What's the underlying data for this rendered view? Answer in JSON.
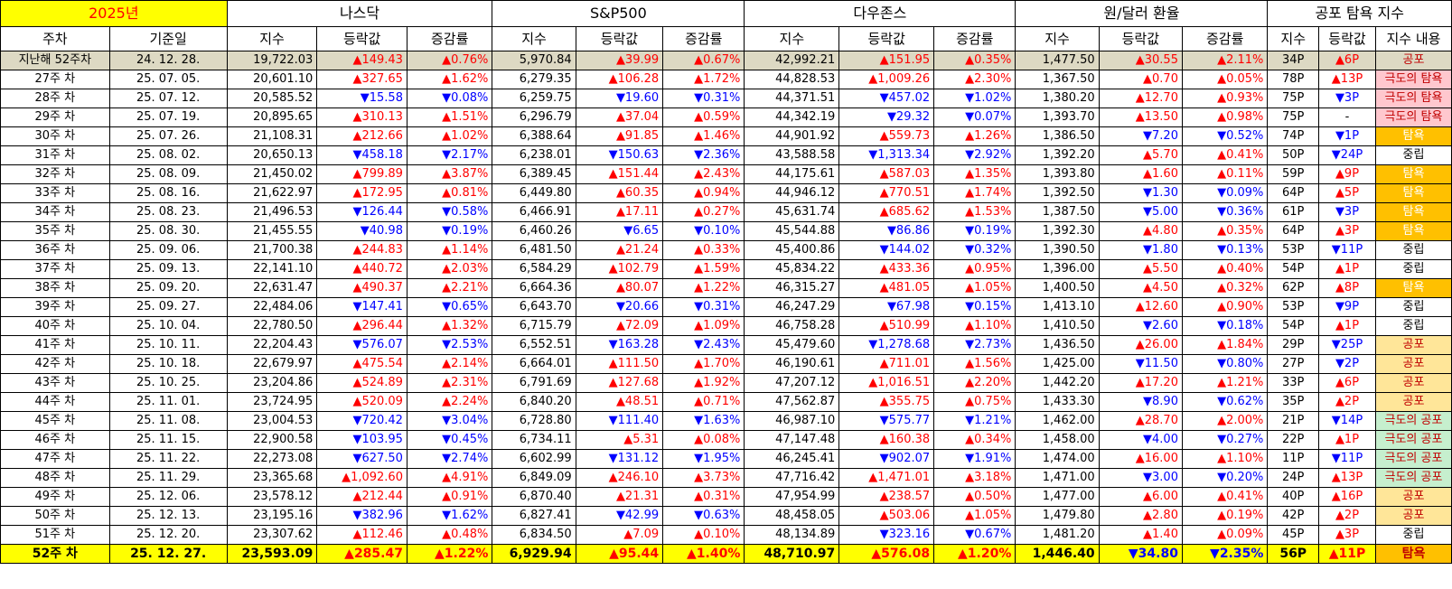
{
  "header": {
    "year_label": "2025년",
    "groups": [
      "나스닥",
      "S&P500",
      "다우존스",
      "원/달러 환율",
      "공포 탐욕 지수"
    ],
    "week_col": "주차",
    "date_col": "기준일",
    "sub_index": "지수",
    "sub_change": "등락값",
    "sub_rate": "증감률",
    "sub_content": "지수 내용"
  },
  "colors": {
    "up": "#ff0000",
    "down": "#0000ff",
    "year_bg": "#ffff00",
    "base_bg": "#ddd9c3",
    "fear": "#ffe699",
    "greed": "#ffc000",
    "extreme_greed": "#ffc7ce",
    "extreme_fear": "#c6efce"
  },
  "rows": [
    {
      "week": "지난해 52주차",
      "date": "24. 12. 28.",
      "nq": "19,722.03",
      "nqc": "▲149.43",
      "nqr": "▲0.76%",
      "sp": "5,970.84",
      "spc": "▲39.99",
      "spr": "▲0.67%",
      "dj": "42,992.21",
      "djc": "▲151.95",
      "djr": "▲0.35%",
      "fx": "1,477.50",
      "fxc": "▲30.55",
      "fxr": "▲2.11%",
      "fg": "34P",
      "fgc": "▲6P",
      "fgt": "공포",
      "tag": "fear",
      "kind": "base"
    },
    {
      "week": "27주 차",
      "date": "25. 07. 05.",
      "nq": "20,601.10",
      "nqc": "▲327.65",
      "nqr": "▲1.62%",
      "sp": "6,279.35",
      "spc": "▲106.28",
      "spr": "▲1.72%",
      "dj": "44,828.53",
      "djc": "▲1,009.26",
      "djr": "▲2.30%",
      "fx": "1,367.50",
      "fxc": "▲0.70",
      "fxr": "▲0.05%",
      "fg": "78P",
      "fgc": "▲13P",
      "fgt": "극도의 탐욕",
      "tag": "xgreed"
    },
    {
      "week": "28주 차",
      "date": "25. 07. 12.",
      "nq": "20,585.52",
      "nqc": "▼15.58",
      "nqr": "▼0.08%",
      "sp": "6,259.75",
      "spc": "▼19.60",
      "spr": "▼0.31%",
      "dj": "44,371.51",
      "djc": "▼457.02",
      "djr": "▼1.02%",
      "fx": "1,380.20",
      "fxc": "▲12.70",
      "fxr": "▲0.93%",
      "fg": "75P",
      "fgc": "▼3P",
      "fgt": "극도의 탐욕",
      "tag": "xgreed"
    },
    {
      "week": "29주 차",
      "date": "25. 07. 19.",
      "nq": "20,895.65",
      "nqc": "▲310.13",
      "nqr": "▲1.51%",
      "sp": "6,296.79",
      "spc": "▲37.04",
      "spr": "▲0.59%",
      "dj": "44,342.19",
      "djc": "▼29.32",
      "djr": "▼0.07%",
      "fx": "1,393.70",
      "fxc": "▲13.50",
      "fxr": "▲0.98%",
      "fg": "75P",
      "fgc": "-",
      "fgt": "극도의 탐욕",
      "tag": "xgreed"
    },
    {
      "week": "30주 차",
      "date": "25. 07. 26.",
      "nq": "21,108.31",
      "nqc": "▲212.66",
      "nqr": "▲1.02%",
      "sp": "6,388.64",
      "spc": "▲91.85",
      "spr": "▲1.46%",
      "dj": "44,901.92",
      "djc": "▲559.73",
      "djr": "▲1.26%",
      "fx": "1,386.50",
      "fxc": "▼7.20",
      "fxr": "▼0.52%",
      "fg": "74P",
      "fgc": "▼1P",
      "fgt": "탐욕",
      "tag": "greed"
    },
    {
      "week": "31주 차",
      "date": "25. 08. 02.",
      "nq": "20,650.13",
      "nqc": "▼458.18",
      "nqr": "▼2.17%",
      "sp": "6,238.01",
      "spc": "▼150.63",
      "spr": "▼2.36%",
      "dj": "43,588.58",
      "djc": "▼1,313.34",
      "djr": "▼2.92%",
      "fx": "1,392.20",
      "fxc": "▲5.70",
      "fxr": "▲0.41%",
      "fg": "50P",
      "fgc": "▼24P",
      "fgt": "중립",
      "tag": "neutral"
    },
    {
      "week": "32주 차",
      "date": "25. 08. 09.",
      "nq": "21,450.02",
      "nqc": "▲799.89",
      "nqr": "▲3.87%",
      "sp": "6,389.45",
      "spc": "▲151.44",
      "spr": "▲2.43%",
      "dj": "44,175.61",
      "djc": "▲587.03",
      "djr": "▲1.35%",
      "fx": "1,393.80",
      "fxc": "▲1.60",
      "fxr": "▲0.11%",
      "fg": "59P",
      "fgc": "▲9P",
      "fgt": "탐욕",
      "tag": "greed"
    },
    {
      "week": "33주 차",
      "date": "25. 08. 16.",
      "nq": "21,622.97",
      "nqc": "▲172.95",
      "nqr": "▲0.81%",
      "sp": "6,449.80",
      "spc": "▲60.35",
      "spr": "▲0.94%",
      "dj": "44,946.12",
      "djc": "▲770.51",
      "djr": "▲1.74%",
      "fx": "1,392.50",
      "fxc": "▼1.30",
      "fxr": "▼0.09%",
      "fg": "64P",
      "fgc": "▲5P",
      "fgt": "탐욕",
      "tag": "greed"
    },
    {
      "week": "34주 차",
      "date": "25. 08. 23.",
      "nq": "21,496.53",
      "nqc": "▼126.44",
      "nqr": "▼0.58%",
      "sp": "6,466.91",
      "spc": "▲17.11",
      "spr": "▲0.27%",
      "dj": "45,631.74",
      "djc": "▲685.62",
      "djr": "▲1.53%",
      "fx": "1,387.50",
      "fxc": "▼5.00",
      "fxr": "▼0.36%",
      "fg": "61P",
      "fgc": "▼3P",
      "fgt": "탐욕",
      "tag": "greed"
    },
    {
      "week": "35주 차",
      "date": "25. 08. 30.",
      "nq": "21,455.55",
      "nqc": "▼40.98",
      "nqr": "▼0.19%",
      "sp": "6,460.26",
      "spc": "▼6.65",
      "spr": "▼0.10%",
      "dj": "45,544.88",
      "djc": "▼86.86",
      "djr": "▼0.19%",
      "fx": "1,392.30",
      "fxc": "▲4.80",
      "fxr": "▲0.35%",
      "fg": "64P",
      "fgc": "▲3P",
      "fgt": "탐욕",
      "tag": "greed"
    },
    {
      "week": "36주 차",
      "date": "25. 09. 06.",
      "nq": "21,700.38",
      "nqc": "▲244.83",
      "nqr": "▲1.14%",
      "sp": "6,481.50",
      "spc": "▲21.24",
      "spr": "▲0.33%",
      "dj": "45,400.86",
      "djc": "▼144.02",
      "djr": "▼0.32%",
      "fx": "1,390.50",
      "fxc": "▼1.80",
      "fxr": "▼0.13%",
      "fg": "53P",
      "fgc": "▼11P",
      "fgt": "중립",
      "tag": "neutral"
    },
    {
      "week": "37주 차",
      "date": "25. 09. 13.",
      "nq": "22,141.10",
      "nqc": "▲440.72",
      "nqr": "▲2.03%",
      "sp": "6,584.29",
      "spc": "▲102.79",
      "spr": "▲1.59%",
      "dj": "45,834.22",
      "djc": "▲433.36",
      "djr": "▲0.95%",
      "fx": "1,396.00",
      "fxc": "▲5.50",
      "fxr": "▲0.40%",
      "fg": "54P",
      "fgc": "▲1P",
      "fgt": "중립",
      "tag": "neutral"
    },
    {
      "week": "38주 차",
      "date": "25. 09. 20.",
      "nq": "22,631.47",
      "nqc": "▲490.37",
      "nqr": "▲2.21%",
      "sp": "6,664.36",
      "spc": "▲80.07",
      "spr": "▲1.22%",
      "dj": "46,315.27",
      "djc": "▲481.05",
      "djr": "▲1.05%",
      "fx": "1,400.50",
      "fxc": "▲4.50",
      "fxr": "▲0.32%",
      "fg": "62P",
      "fgc": "▲8P",
      "fgt": "탐욕",
      "tag": "greed"
    },
    {
      "week": "39주 차",
      "date": "25. 09. 27.",
      "nq": "22,484.06",
      "nqc": "▼147.41",
      "nqr": "▼0.65%",
      "sp": "6,643.70",
      "spc": "▼20.66",
      "spr": "▼0.31%",
      "dj": "46,247.29",
      "djc": "▼67.98",
      "djr": "▼0.15%",
      "fx": "1,413.10",
      "fxc": "▲12.60",
      "fxr": "▲0.90%",
      "fg": "53P",
      "fgc": "▼9P",
      "fgt": "중립",
      "tag": "neutral"
    },
    {
      "week": "40주 차",
      "date": "25. 10. 04.",
      "nq": "22,780.50",
      "nqc": "▲296.44",
      "nqr": "▲1.32%",
      "sp": "6,715.79",
      "spc": "▲72.09",
      "spr": "▲1.09%",
      "dj": "46,758.28",
      "djc": "▲510.99",
      "djr": "▲1.10%",
      "fx": "1,410.50",
      "fxc": "▼2.60",
      "fxr": "▼0.18%",
      "fg": "54P",
      "fgc": "▲1P",
      "fgt": "중립",
      "tag": "neutral"
    },
    {
      "week": "41주 차",
      "date": "25. 10. 11.",
      "nq": "22,204.43",
      "nqc": "▼576.07",
      "nqr": "▼2.53%",
      "sp": "6,552.51",
      "spc": "▼163.28",
      "spr": "▼2.43%",
      "dj": "45,479.60",
      "djc": "▼1,278.68",
      "djr": "▼2.73%",
      "fx": "1,436.50",
      "fxc": "▲26.00",
      "fxr": "▲1.84%",
      "fg": "29P",
      "fgc": "▼25P",
      "fgt": "공포",
      "tag": "fear"
    },
    {
      "week": "42주 차",
      "date": "25. 10. 18.",
      "nq": "22,679.97",
      "nqc": "▲475.54",
      "nqr": "▲2.14%",
      "sp": "6,664.01",
      "spc": "▲111.50",
      "spr": "▲1.70%",
      "dj": "46,190.61",
      "djc": "▲711.01",
      "djr": "▲1.56%",
      "fx": "1,425.00",
      "fxc": "▼11.50",
      "fxr": "▼0.80%",
      "fg": "27P",
      "fgc": "▼2P",
      "fgt": "공포",
      "tag": "fear"
    },
    {
      "week": "43주 차",
      "date": "25. 10. 25.",
      "nq": "23,204.86",
      "nqc": "▲524.89",
      "nqr": "▲2.31%",
      "sp": "6,791.69",
      "spc": "▲127.68",
      "spr": "▲1.92%",
      "dj": "47,207.12",
      "djc": "▲1,016.51",
      "djr": "▲2.20%",
      "fx": "1,442.20",
      "fxc": "▲17.20",
      "fxr": "▲1.21%",
      "fg": "33P",
      "fgc": "▲6P",
      "fgt": "공포",
      "tag": "fear"
    },
    {
      "week": "44주 차",
      "date": "25. 11. 01.",
      "nq": "23,724.95",
      "nqc": "▲520.09",
      "nqr": "▲2.24%",
      "sp": "6,840.20",
      "spc": "▲48.51",
      "spr": "▲0.71%",
      "dj": "47,562.87",
      "djc": "▲355.75",
      "djr": "▲0.75%",
      "fx": "1,433.30",
      "fxc": "▼8.90",
      "fxr": "▼0.62%",
      "fg": "35P",
      "fgc": "▲2P",
      "fgt": "공포",
      "tag": "fear"
    },
    {
      "week": "45주 차",
      "date": "25. 11. 08.",
      "nq": "23,004.53",
      "nqc": "▼720.42",
      "nqr": "▼3.04%",
      "sp": "6,728.80",
      "spc": "▼111.40",
      "spr": "▼1.63%",
      "dj": "46,987.10",
      "djc": "▼575.77",
      "djr": "▼1.21%",
      "fx": "1,462.00",
      "fxc": "▲28.70",
      "fxr": "▲2.00%",
      "fg": "21P",
      "fgc": "▼14P",
      "fgt": "극도의 공포",
      "tag": "xfear"
    },
    {
      "week": "46주 차",
      "date": "25. 11. 15.",
      "nq": "22,900.58",
      "nqc": "▼103.95",
      "nqr": "▼0.45%",
      "sp": "6,734.11",
      "spc": "▲5.31",
      "spr": "▲0.08%",
      "dj": "47,147.48",
      "djc": "▲160.38",
      "djr": "▲0.34%",
      "fx": "1,458.00",
      "fxc": "▼4.00",
      "fxr": "▼0.27%",
      "fg": "22P",
      "fgc": "▲1P",
      "fgt": "극도의 공포",
      "tag": "xfear"
    },
    {
      "week": "47주 차",
      "date": "25. 11. 22.",
      "nq": "22,273.08",
      "nqc": "▼627.50",
      "nqr": "▼2.74%",
      "sp": "6,602.99",
      "spc": "▼131.12",
      "spr": "▼1.95%",
      "dj": "46,245.41",
      "djc": "▼902.07",
      "djr": "▼1.91%",
      "fx": "1,474.00",
      "fxc": "▲16.00",
      "fxr": "▲1.10%",
      "fg": "11P",
      "fgc": "▼11P",
      "fgt": "극도의 공포",
      "tag": "xfear"
    },
    {
      "week": "48주 차",
      "date": "25. 11. 29.",
      "nq": "23,365.68",
      "nqc": "▲1,092.60",
      "nqr": "▲4.91%",
      "sp": "6,849.09",
      "spc": "▲246.10",
      "spr": "▲3.73%",
      "dj": "47,716.42",
      "djc": "▲1,471.01",
      "djr": "▲3.18%",
      "fx": "1,471.00",
      "fxc": "▼3.00",
      "fxr": "▼0.20%",
      "fg": "24P",
      "fgc": "▲13P",
      "fgt": "극도의 공포",
      "tag": "xfear"
    },
    {
      "week": "49주 차",
      "date": "25. 12. 06.",
      "nq": "23,578.12",
      "nqc": "▲212.44",
      "nqr": "▲0.91%",
      "sp": "6,870.40",
      "spc": "▲21.31",
      "spr": "▲0.31%",
      "dj": "47,954.99",
      "djc": "▲238.57",
      "djr": "▲0.50%",
      "fx": "1,477.00",
      "fxc": "▲6.00",
      "fxr": "▲0.41%",
      "fg": "40P",
      "fgc": "▲16P",
      "fgt": "공포",
      "tag": "fear"
    },
    {
      "week": "50주 차",
      "date": "25. 12. 13.",
      "nq": "23,195.16",
      "nqc": "▼382.96",
      "nqr": "▼1.62%",
      "sp": "6,827.41",
      "spc": "▼42.99",
      "spr": "▼0.63%",
      "dj": "48,458.05",
      "djc": "▲503.06",
      "djr": "▲1.05%",
      "fx": "1,479.80",
      "fxc": "▲2.80",
      "fxr": "▲0.19%",
      "fg": "42P",
      "fgc": "▲2P",
      "fgt": "공포",
      "tag": "fear"
    },
    {
      "week": "51주 차",
      "date": "25. 12. 20.",
      "nq": "23,307.62",
      "nqc": "▲112.46",
      "nqr": "▲0.48%",
      "sp": "6,834.50",
      "spc": "▲7.09",
      "spr": "▲0.10%",
      "dj": "48,134.89",
      "djc": "▼323.16",
      "djr": "▼0.67%",
      "fx": "1,481.20",
      "fxc": "▲1.40",
      "fxr": "▲0.09%",
      "fg": "45P",
      "fgc": "▲3P",
      "fgt": "중립",
      "tag": "neutral"
    },
    {
      "week": "52주 차",
      "date": "25. 12. 27.",
      "nq": "23,593.09",
      "nqc": "▲285.47",
      "nqr": "▲1.22%",
      "sp": "6,929.94",
      "spc": "▲95.44",
      "spr": "▲1.40%",
      "dj": "48,710.97",
      "djc": "▲576.08",
      "djr": "▲1.20%",
      "fx": "1,446.40",
      "fxc": "▼34.80",
      "fxr": "▼2.35%",
      "fg": "56P",
      "fgc": "▲11P",
      "fgt": "탐욕",
      "tag": "greed",
      "kind": "last"
    }
  ]
}
